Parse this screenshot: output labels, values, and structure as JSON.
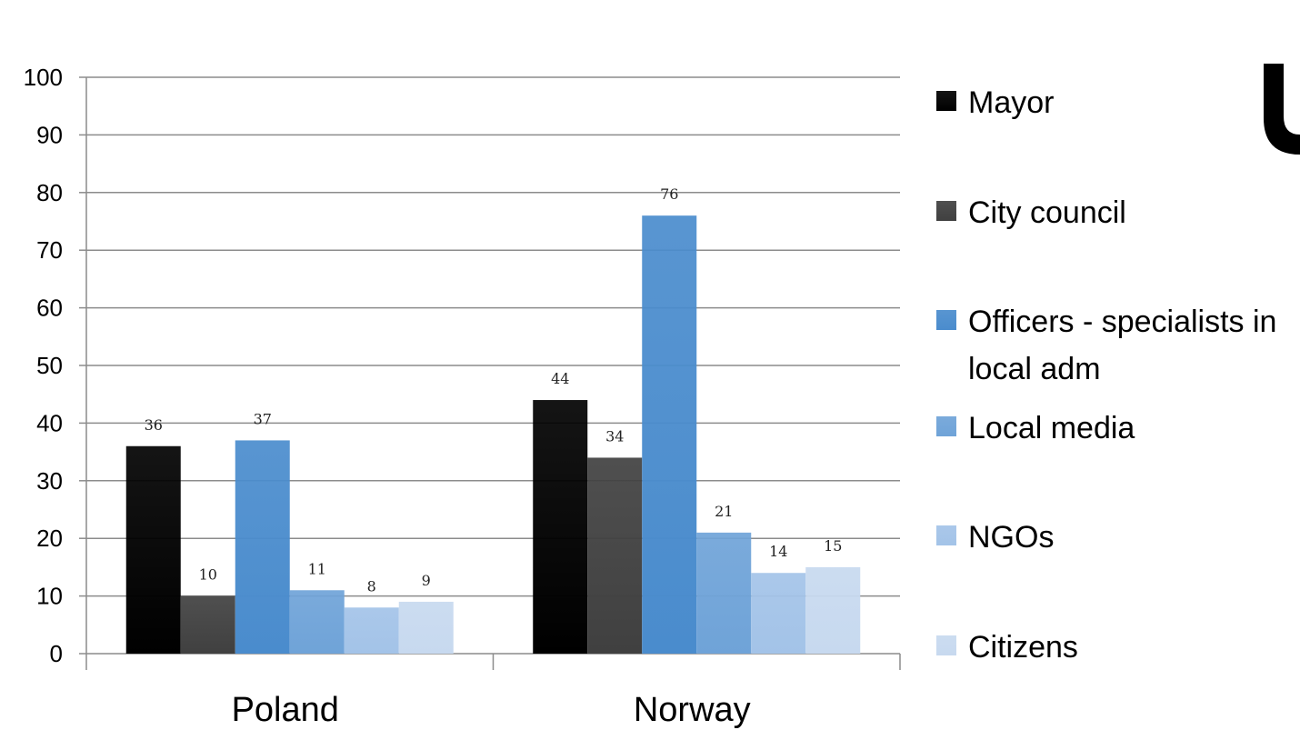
{
  "chart_data": {
    "type": "bar",
    "title": "",
    "xlabel": "",
    "ylabel": "",
    "ylim": [
      0,
      100
    ],
    "ytick_step": 10,
    "grid": true,
    "legend_position": "right",
    "categories": [
      "Poland",
      "Norway"
    ],
    "series": [
      {
        "name": "Mayor",
        "values": [
          36,
          44
        ],
        "color": "#000000"
      },
      {
        "name": "City council",
        "values": [
          10,
          34
        ],
        "color": "#404040"
      },
      {
        "name": "Officers - specialists in local adm",
        "values": [
          37,
          76
        ],
        "color": "#4a8ccd"
      },
      {
        "name": "Local media",
        "values": [
          11,
          21
        ],
        "color": "#6fa3d8"
      },
      {
        "name": "NGOs",
        "values": [
          8,
          14
        ],
        "color": "#a3c3e8"
      },
      {
        "name": "Citizens",
        "values": [
          9,
          15
        ],
        "color": "#c7d9ef"
      }
    ],
    "legend_lines": [
      [
        "Mayor"
      ],
      [
        "City council"
      ],
      [
        "Officers - specialists in",
        "local adm"
      ],
      [
        "Local media"
      ],
      [
        "NGOs"
      ],
      [
        "Citizens"
      ]
    ]
  }
}
